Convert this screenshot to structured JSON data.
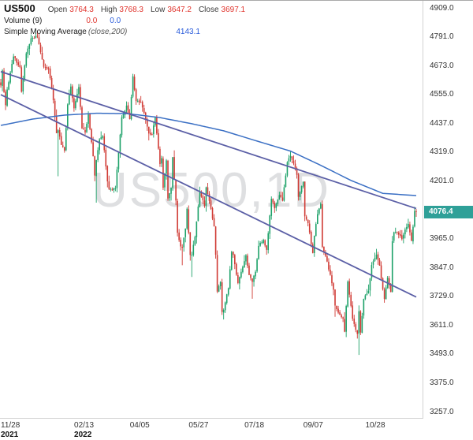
{
  "header": {
    "symbol": "US500",
    "ohlc": {
      "open_label": "Open",
      "open": "3764.3",
      "high_label": "High",
      "high": "3768.3",
      "low_label": "Low",
      "low": "3647.2",
      "close_label": "Close",
      "close": "3697.1"
    },
    "indicators": [
      {
        "name": "Volume (9)",
        "values": [
          "0.0",
          "0.0"
        ]
      },
      {
        "name": "Simple Moving Average",
        "params": "(close,200)",
        "value": "4143.1"
      }
    ]
  },
  "chart_data": {
    "type": "candlestick",
    "symbol": "US500",
    "interval": "1D",
    "watermark": "US500,1D",
    "last_price": 4076.4,
    "n_bars": 262,
    "price_axis": {
      "min": 3230,
      "max": 4940,
      "tick_step": 118,
      "ticks": [
        4909,
        4791,
        4673,
        4555,
        4437,
        4319,
        4201,
        4083,
        3965,
        3847,
        3729,
        3611,
        3493,
        3375,
        3257
      ]
    },
    "time_axis": {
      "ticks": [
        {
          "label": "11/28",
          "year": "2021",
          "i": 1
        },
        {
          "label": "02/13",
          "year": "2022",
          "i": 53
        },
        {
          "label": "04/05",
          "i": 88
        },
        {
          "label": "05/27",
          "i": 125
        },
        {
          "label": "07/18",
          "i": 160
        },
        {
          "label": "09/07",
          "i": 197
        },
        {
          "label": "10/28",
          "i": 236
        }
      ]
    },
    "close_anchors": [
      [
        0,
        4594
      ],
      [
        1,
        4655
      ],
      [
        2,
        4567
      ],
      [
        3,
        4513
      ],
      [
        4,
        4577
      ],
      [
        8,
        4712
      ],
      [
        12,
        4669
      ],
      [
        13,
        4568
      ],
      [
        16,
        4725
      ],
      [
        19,
        4786
      ],
      [
        23,
        4793
      ],
      [
        27,
        4670
      ],
      [
        30,
        4663
      ],
      [
        33,
        4533
      ],
      [
        35,
        4398
      ],
      [
        36,
        4410
      ],
      [
        38,
        4350
      ],
      [
        40,
        4327
      ],
      [
        42,
        4516
      ],
      [
        44,
        4589
      ],
      [
        46,
        4500
      ],
      [
        49,
        4587
      ],
      [
        51,
        4418
      ],
      [
        53,
        4401
      ],
      [
        55,
        4475
      ],
      [
        58,
        4304
      ],
      [
        59,
        4225
      ],
      [
        60,
        4288
      ],
      [
        62,
        4373
      ],
      [
        64,
        4386
      ],
      [
        67,
        4201
      ],
      [
        68,
        4170
      ],
      [
        72,
        4173
      ],
      [
        76,
        4463
      ],
      [
        79,
        4511
      ],
      [
        81,
        4456
      ],
      [
        83,
        4631
      ],
      [
        85,
        4530
      ],
      [
        88,
        4525
      ],
      [
        90,
        4481
      ],
      [
        93,
        4397
      ],
      [
        95,
        4393
      ],
      [
        97,
        4462
      ],
      [
        100,
        4272
      ],
      [
        101,
        4296
      ],
      [
        102,
        4175
      ],
      [
        104,
        4287
      ],
      [
        105,
        4131
      ],
      [
        107,
        4175
      ],
      [
        108,
        4300
      ],
      [
        110,
        4123
      ],
      [
        111,
        3991
      ],
      [
        113,
        3935
      ],
      [
        114,
        3930
      ],
      [
        116,
        4008
      ],
      [
        117,
        4089
      ],
      [
        119,
        3900
      ],
      [
        120,
        3901
      ],
      [
        122,
        3974
      ],
      [
        125,
        4158
      ],
      [
        128,
        4101
      ],
      [
        129,
        4177
      ],
      [
        131,
        4121
      ],
      [
        134,
        4017
      ],
      [
        135,
        3901
      ],
      [
        136,
        3750
      ],
      [
        138,
        3790
      ],
      [
        139,
        3667
      ],
      [
        140,
        3675
      ],
      [
        143,
        3764
      ],
      [
        145,
        3912
      ],
      [
        146,
        3900
      ],
      [
        149,
        3785
      ],
      [
        151,
        3831
      ],
      [
        154,
        3899
      ],
      [
        156,
        3818
      ],
      [
        158,
        3790
      ],
      [
        160,
        3831
      ],
      [
        162,
        3937
      ],
      [
        165,
        3962
      ],
      [
        167,
        3921
      ],
      [
        170,
        4130
      ],
      [
        172,
        4091
      ],
      [
        175,
        4145
      ],
      [
        177,
        4122
      ],
      [
        180,
        4280
      ],
      [
        182,
        4305
      ],
      [
        184,
        4274
      ],
      [
        186,
        4228
      ],
      [
        187,
        4138
      ],
      [
        190,
        4199
      ],
      [
        191,
        4058
      ],
      [
        193,
        4030
      ],
      [
        196,
        3908
      ],
      [
        197,
        3979
      ],
      [
        199,
        4067
      ],
      [
        201,
        4110
      ],
      [
        202,
        3933
      ],
      [
        205,
        3873
      ],
      [
        209,
        3758
      ],
      [
        210,
        3693
      ],
      [
        213,
        3655
      ],
      [
        215,
        3640
      ],
      [
        216,
        3586
      ],
      [
        218,
        3791
      ],
      [
        221,
        3639
      ],
      [
        224,
        3577
      ],
      [
        225,
        3670
      ],
      [
        226,
        3583
      ],
      [
        228,
        3720
      ],
      [
        231,
        3753
      ],
      [
        233,
        3859
      ],
      [
        236,
        3901
      ],
      [
        238,
        3856
      ],
      [
        240,
        3760
      ],
      [
        241,
        3720
      ],
      [
        243,
        3807
      ],
      [
        245,
        3748
      ],
      [
        246,
        3956
      ],
      [
        247,
        3993
      ],
      [
        249,
        3992
      ],
      [
        252,
        3965
      ],
      [
        254,
        4004
      ],
      [
        256,
        4027
      ],
      [
        258,
        3958
      ],
      [
        260,
        4080
      ],
      [
        261,
        4076.4
      ]
    ],
    "wick_extremes": [
      {
        "i": 23,
        "high": 4818
      },
      {
        "i": 36,
        "low": 4222
      },
      {
        "i": 60,
        "low": 4114
      },
      {
        "i": 72,
        "low": 4161
      },
      {
        "i": 105,
        "low": 4124
      },
      {
        "i": 114,
        "low": 3858
      },
      {
        "i": 120,
        "low": 3810
      },
      {
        "i": 140,
        "low": 3636
      },
      {
        "i": 158,
        "low": 3721
      },
      {
        "i": 182,
        "high": 4325
      },
      {
        "i": 210,
        "low": 3647
      },
      {
        "i": 216,
        "low": 3584
      },
      {
        "i": 225,
        "low": 3491
      }
    ],
    "ma": {
      "label": "SMA 200",
      "value": 4143.1,
      "anchors": [
        [
          0,
          4430
        ],
        [
          20,
          4456
        ],
        [
          40,
          4472
        ],
        [
          60,
          4480
        ],
        [
          80,
          4478
        ],
        [
          100,
          4462
        ],
        [
          120,
          4437
        ],
        [
          140,
          4408
        ],
        [
          160,
          4368
        ],
        [
          182,
          4325
        ],
        [
          200,
          4270
        ],
        [
          220,
          4205
        ],
        [
          240,
          4152
        ],
        [
          261,
          4143
        ]
      ]
    },
    "trendlines": [
      {
        "from_i": 0,
        "from_price": 4650,
        "to_i": 261,
        "to_price": 4090
      },
      {
        "from_i": 0,
        "from_price": 4556,
        "to_i": 261,
        "to_price": 3728
      }
    ],
    "colors": {
      "up": "#1ca168",
      "down": "#d03a34",
      "ma": "#3a6fc4",
      "trendline": "#5b5fa6",
      "last_price_bg": "#2fa098",
      "value_red": "#e0332c",
      "value_blue": "#2a5cdb",
      "watermark": "rgba(105,110,120,0.22)"
    }
  }
}
